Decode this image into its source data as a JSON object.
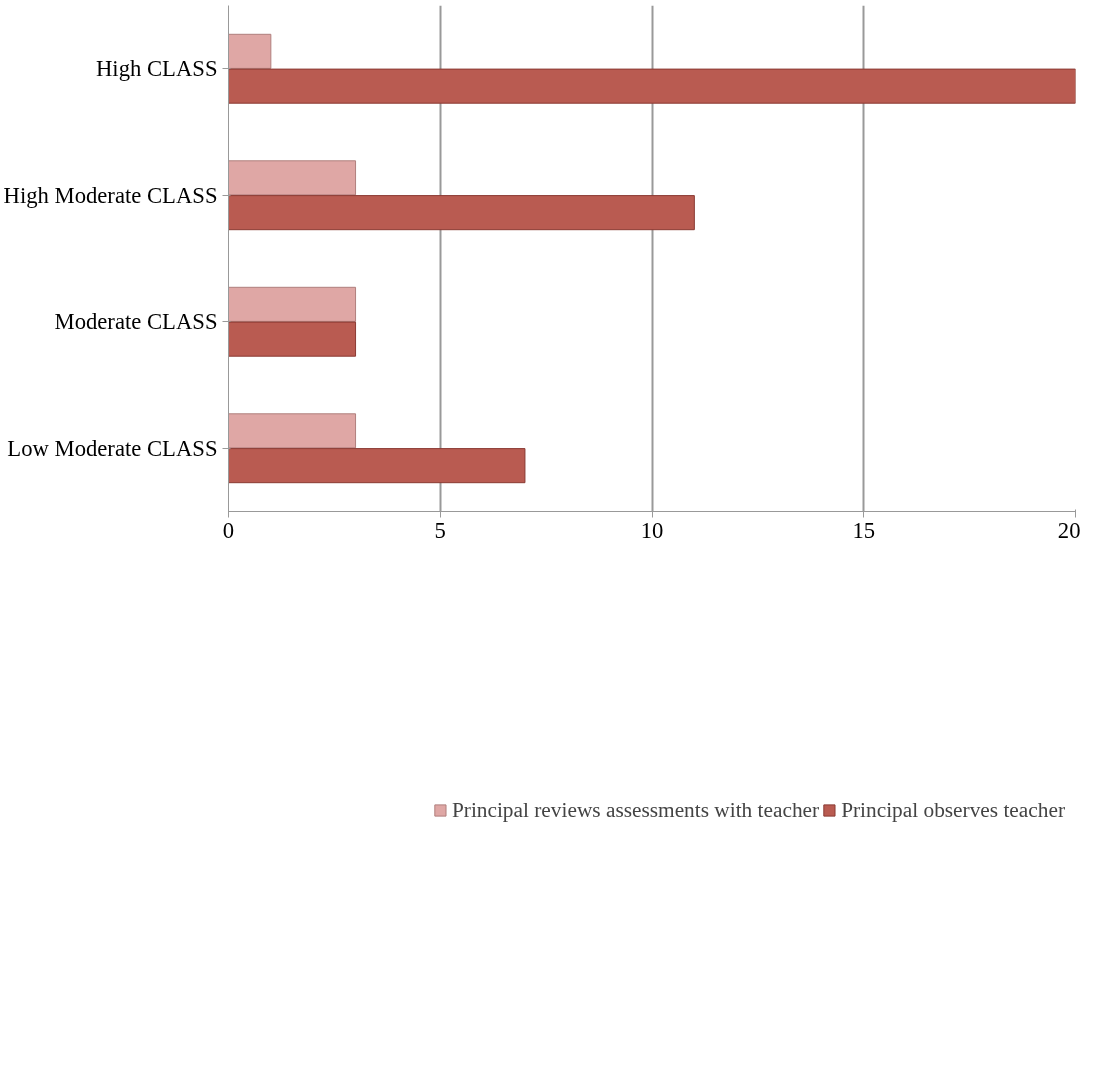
{
  "chart_data": {
    "type": "bar",
    "orientation": "horizontal",
    "categories": [
      "High CLASS",
      "High Moderate CLASS",
      "Moderate CLASS",
      "Low Moderate CLASS"
    ],
    "series": [
      {
        "name": "Principal reviews assessments with teacher",
        "color": "#dfa7a5",
        "values": [
          1,
          3,
          3,
          3
        ]
      },
      {
        "name": "Principal observes teacher",
        "color": "#b95b51",
        "values": [
          20,
          11,
          3,
          7
        ]
      }
    ],
    "xlim": [
      0,
      20
    ],
    "xticks": [
      0,
      5,
      10,
      15,
      20
    ],
    "grid": "x",
    "legend": "bottom"
  }
}
